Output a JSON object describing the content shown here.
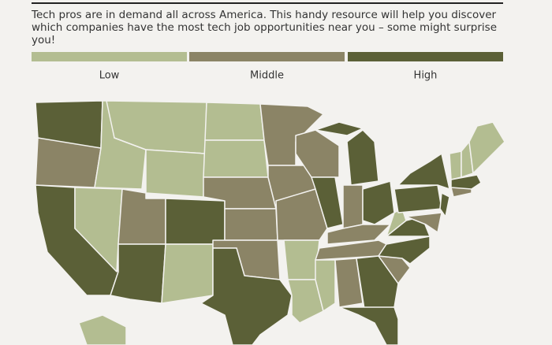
{
  "header": {
    "text": "Tech pros are in demand all across America. This handy resource will help you discover which companies have the most tech job opportunities near you – some might surprise you!"
  },
  "legend": [
    {
      "label": "Low",
      "color": "#b3bd91"
    },
    {
      "label": "Middle",
      "color": "#8b8466"
    },
    {
      "label": "High",
      "color": "#5b6037"
    }
  ],
  "map": {
    "regions": [
      2,
      1,
      2,
      0,
      0,
      0,
      0,
      1,
      2,
      2,
      0,
      0,
      0,
      1,
      1,
      1,
      2,
      1,
      1,
      1,
      0,
      0,
      1,
      2,
      2,
      2,
      1,
      2,
      1,
      1,
      0,
      1,
      2,
      2,
      1,
      2,
      2,
      0,
      2,
      2,
      2,
      1,
      1,
      2,
      0,
      0,
      0,
      0
    ]
  }
}
